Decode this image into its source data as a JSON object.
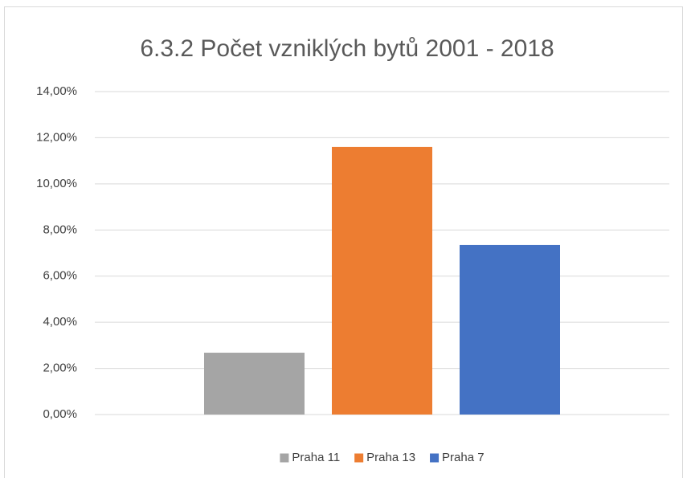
{
  "chart_data": {
    "type": "bar",
    "title": "6.3.2 Počet vzniklých bytů  2001 - 2018",
    "categories": [
      null
    ],
    "series": [
      {
        "name": "Praha 11",
        "color": "#a5a5a5",
        "values": [
          2.68
        ]
      },
      {
        "name": "Praha 13",
        "color": "#ed7d31",
        "values": [
          11.6
        ]
      },
      {
        "name": "Praha 7",
        "color": "#4472c4",
        "values": [
          7.35
        ]
      }
    ],
    "ylim": [
      0,
      14
    ],
    "yticks": [
      {
        "value": 0,
        "label": "0,00%"
      },
      {
        "value": 2,
        "label": "2,00%"
      },
      {
        "value": 4,
        "label": "4,00%"
      },
      {
        "value": 6,
        "label": "6,00%"
      },
      {
        "value": 8,
        "label": "8,00%"
      },
      {
        "value": 10,
        "label": "10,00%"
      },
      {
        "value": 12,
        "label": "12,00%"
      },
      {
        "value": 14,
        "label": "14,00%"
      }
    ],
    "grid": true,
    "legend": "bottom"
  }
}
